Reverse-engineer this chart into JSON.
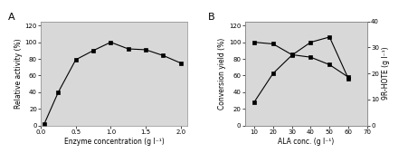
{
  "panel_A": {
    "x": [
      0.05,
      0.25,
      0.5,
      0.75,
      1.0,
      1.25,
      1.5,
      1.75,
      2.0
    ],
    "y": [
      2,
      40,
      79,
      90,
      100,
      92,
      91,
      84,
      75
    ],
    "xlabel": "Enzyme concentration (g l⁻¹)",
    "ylabel": "Relative activity (%)",
    "xlim": [
      0.0,
      2.1
    ],
    "ylim": [
      0,
      125
    ],
    "yticks": [
      0,
      20,
      40,
      60,
      80,
      100,
      120
    ],
    "xticks": [
      0.0,
      0.5,
      1.0,
      1.5,
      2.0
    ],
    "label": "A"
  },
  "panel_B": {
    "x": [
      10,
      20,
      30,
      40,
      50,
      60
    ],
    "y_conversion": [
      100,
      98,
      85,
      82,
      73,
      58
    ],
    "y_hote": [
      9,
      20,
      27,
      32,
      34,
      18
    ],
    "xlabel": "ALA conc. (g l⁻¹)",
    "ylabel_left": "Conversion yield (%)",
    "ylabel_right": "9R-HOTE (g l⁻¹)",
    "xlim": [
      5,
      70
    ],
    "ylim_left": [
      0,
      125
    ],
    "ylim_right": [
      0,
      40
    ],
    "yticks_left": [
      0,
      20,
      40,
      60,
      80,
      100,
      120
    ],
    "yticks_right": [
      0,
      10,
      20,
      30,
      40
    ],
    "xticks": [
      10,
      20,
      30,
      40,
      50,
      60,
      70
    ],
    "label": "B"
  },
  "marker": "s",
  "markersize": 3.5,
  "linecolor": "#555555",
  "linewidth": 0.8,
  "fontsize_label": 5.5,
  "fontsize_tick": 5.0,
  "fontsize_panel": 8,
  "bg_color": "#d8d8d8"
}
